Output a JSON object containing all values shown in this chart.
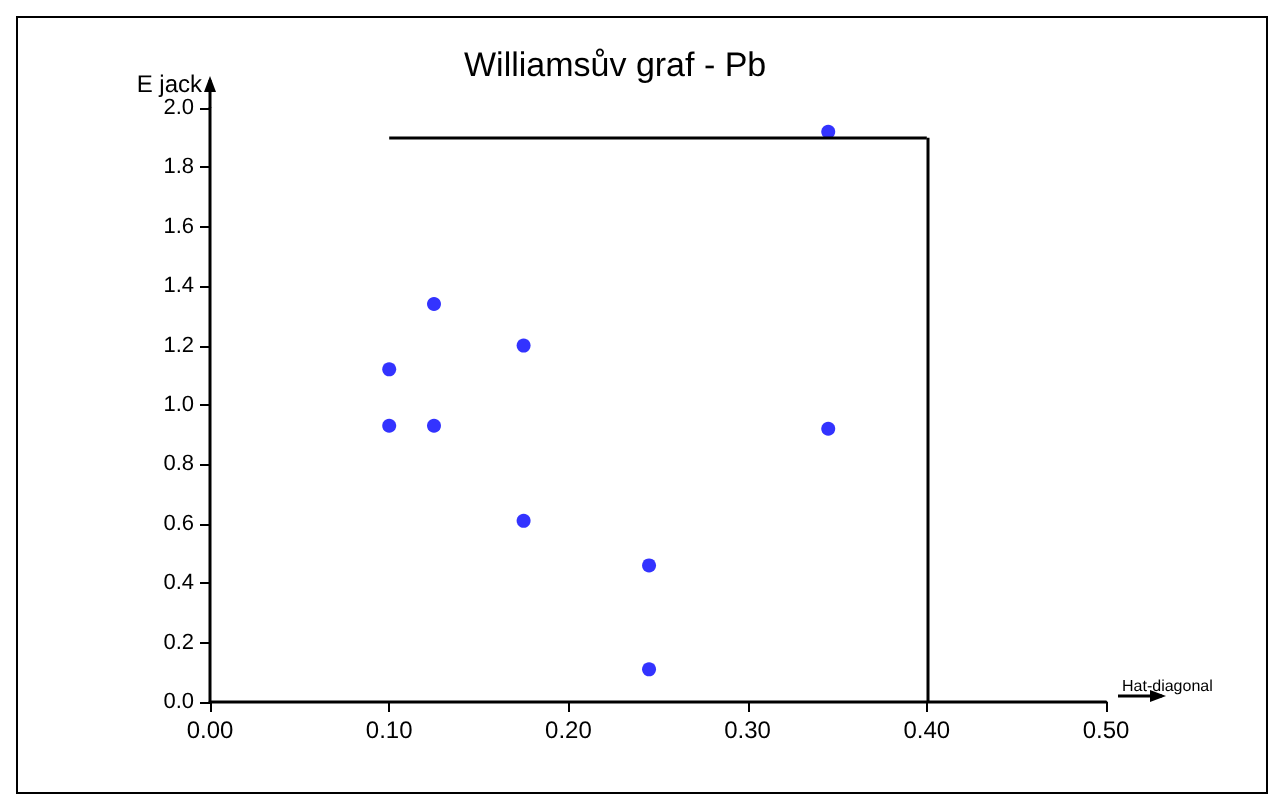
{
  "chart_data": {
    "type": "scatter",
    "title": "Williamsův graf - Pb",
    "xlabel": "Hat-diagonal",
    "ylabel": "E jack",
    "x": [
      0.1,
      0.1,
      0.125,
      0.125,
      0.175,
      0.175,
      0.245,
      0.245,
      0.345,
      0.345
    ],
    "series": [
      {
        "color": "#0000ff",
        "values": [
          1.12,
          0.93,
          1.34,
          0.93,
          1.2,
          0.61,
          0.46,
          0.11,
          1.92,
          0.92
        ]
      }
    ],
    "xlim": [
      0,
      0.5
    ],
    "ylim": [
      0,
      2.0
    ],
    "xticks": [
      {
        "value": 0,
        "label": "0.00"
      },
      {
        "value": 0.1,
        "label": "0.10"
      },
      {
        "value": 0.2,
        "label": "0.20"
      },
      {
        "value": 0.3,
        "label": "0.30"
      },
      {
        "value": 0.4,
        "label": "0.40"
      },
      {
        "value": 0.5,
        "label": "0.50"
      }
    ],
    "yticks": [
      {
        "value": 0,
        "label": "0.0"
      },
      {
        "value": 0.2,
        "label": "0.2"
      },
      {
        "value": 0.4,
        "label": "0.4"
      },
      {
        "value": 0.6,
        "label": "0.6"
      },
      {
        "value": 0.8,
        "label": "0.8"
      },
      {
        "value": 1.0,
        "label": "1.0"
      },
      {
        "value": 1.2,
        "label": "1.2"
      },
      {
        "value": 1.4,
        "label": "1.4"
      },
      {
        "value": 1.6,
        "label": "1.6"
      },
      {
        "value": 1.8,
        "label": "1.8"
      },
      {
        "value": 2.0,
        "label": "2.0"
      }
    ],
    "ref_lines": [
      {
        "axis": "y",
        "value": 1.9,
        "color": "#000000"
      },
      {
        "axis": "x",
        "value": 0.4,
        "color": "#000000"
      }
    ],
    "grid": false,
    "marker": "circle"
  }
}
